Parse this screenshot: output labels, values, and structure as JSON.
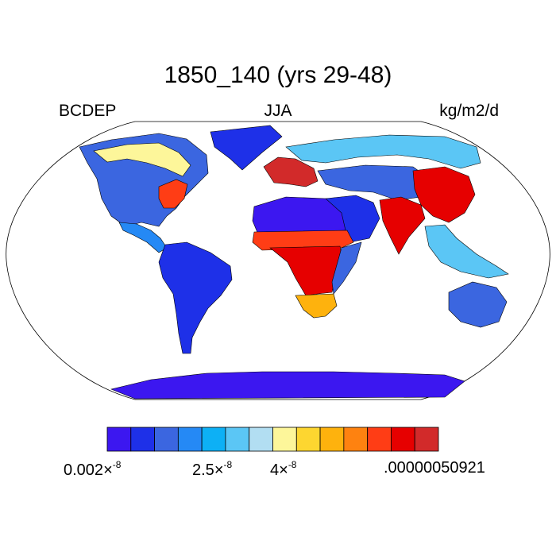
{
  "title": "1850_140 (yrs 29-48)",
  "left_label": "BCDEP",
  "center_label": "JJA",
  "right_label": "kg/m2/d",
  "colorbar": {
    "colors": [
      "#3c17f0",
      "#1e30e8",
      "#3b66e0",
      "#2589f5",
      "#0db0f5",
      "#5bc6f5",
      "#b2def2",
      "#fdf69a",
      "#fdd630",
      "#feb20d",
      "#fe8210",
      "#ff3d15",
      "#e60000",
      "#d22a2a"
    ],
    "tick_labels": [
      {
        "mantissa": "0.002",
        "times": "×",
        "exponent": "-8"
      },
      {
        "mantissa": "2.5",
        "times": "×",
        "exponent": "-8"
      },
      {
        "mantissa": "4",
        "times": "×",
        "exponent": "-8"
      },
      {
        "text": ".00000050921"
      }
    ]
  },
  "regions": [
    {
      "name": "north-america",
      "level": 2
    },
    {
      "name": "canada-northeast-high",
      "level": 7
    },
    {
      "name": "eastern-us-high",
      "level": 11
    },
    {
      "name": "central-america",
      "level": 3
    },
    {
      "name": "south-america",
      "level": 1
    },
    {
      "name": "europe-west",
      "level": 13
    },
    {
      "name": "northern-eurasia",
      "level": 5
    },
    {
      "name": "north-africa",
      "level": 0
    },
    {
      "name": "sahel-band",
      "level": 11
    },
    {
      "name": "central-southern-africa",
      "level": 12
    },
    {
      "name": "east-africa",
      "level": 2
    },
    {
      "name": "south-africa",
      "level": 9
    },
    {
      "name": "middle-east",
      "level": 1
    },
    {
      "name": "india",
      "level": 12
    },
    {
      "name": "china",
      "level": 12
    },
    {
      "name": "central-asia",
      "level": 2
    },
    {
      "name": "southeast-asia",
      "level": 5
    },
    {
      "name": "australia",
      "level": 2
    },
    {
      "name": "antarctica",
      "level": 0
    },
    {
      "name": "greenland",
      "level": 1
    }
  ]
}
